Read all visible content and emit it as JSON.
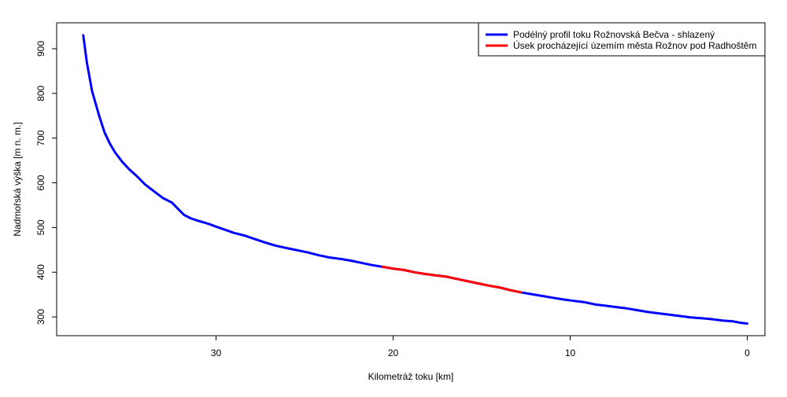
{
  "chart_data": {
    "type": "line",
    "title": "",
    "xlabel": "Kilometráž toku [km]",
    "ylabel": "Nadmořská výška [m n. m.]",
    "xlim": [
      39,
      -1
    ],
    "ylim": [
      258,
      958
    ],
    "x_reversed": true,
    "x_ticks": [
      30,
      20,
      10,
      0
    ],
    "x_tick_labels": [
      "30",
      "20",
      "10",
      "0"
    ],
    "y_ticks": [
      300,
      400,
      500,
      600,
      700,
      800,
      900
    ],
    "y_tick_labels": [
      "300",
      "400",
      "500",
      "600",
      "700",
      "800",
      "900"
    ],
    "grid": false,
    "legend_position": "top-right",
    "series": [
      {
        "name": "Podélný profil toku Rožnovská Bečva - shlazený",
        "color": "#0000ff",
        "x": [
          37.5,
          37.3,
          37.0,
          36.6,
          36.3,
          36.0,
          35.7,
          35.3,
          34.9,
          34.5,
          34.0,
          33.5,
          33.0,
          32.5,
          32.1,
          31.8,
          31.4,
          31.0,
          30.4,
          30.0,
          29.5,
          29.0,
          28.4,
          27.8,
          27.2,
          26.6,
          26.0,
          25.4,
          24.8,
          24.2,
          23.6,
          23.0,
          22.4,
          21.8,
          21.2,
          20.6,
          20.0,
          19.4,
          18.8,
          18.2,
          17.6,
          17.0,
          16.4,
          15.8,
          15.2,
          14.6,
          14.0,
          13.4,
          12.8,
          12.2,
          11.6,
          11.0,
          10.4,
          9.8,
          9.2,
          8.6,
          8.0,
          7.4,
          6.8,
          6.2,
          5.6,
          5.0,
          4.4,
          3.8,
          3.2,
          2.6,
          2.0,
          1.4,
          0.8,
          0.4,
          0.0
        ],
        "y": [
          930,
          870,
          805,
          750,
          713,
          688,
          668,
          647,
          630,
          616,
          596,
          581,
          566,
          556,
          540,
          528,
          520,
          515,
          508,
          502,
          495,
          488,
          482,
          474,
          466,
          459,
          454,
          449,
          444,
          438,
          433,
          430,
          426,
          421,
          416,
          412,
          408,
          405,
          400,
          396,
          393,
          390,
          385,
          380,
          375,
          370,
          366,
          360,
          355,
          351,
          347,
          343,
          339,
          336,
          333,
          328,
          325,
          322,
          319,
          315,
          311,
          308,
          305,
          302,
          299,
          297,
          295,
          292,
          290,
          287,
          285
        ]
      },
      {
        "name": "Úsek procházející územím města Rožnov pod Radhoštěm",
        "color": "#ff0000",
        "x": [
          20.6,
          20.0,
          19.4,
          18.8,
          18.2,
          17.6,
          17.0,
          16.4,
          15.8,
          15.2,
          14.6,
          14.0,
          13.4,
          12.8
        ],
        "y": [
          412,
          408,
          405,
          400,
          396,
          393,
          390,
          385,
          380,
          375,
          370,
          366,
          360,
          355
        ]
      }
    ]
  }
}
